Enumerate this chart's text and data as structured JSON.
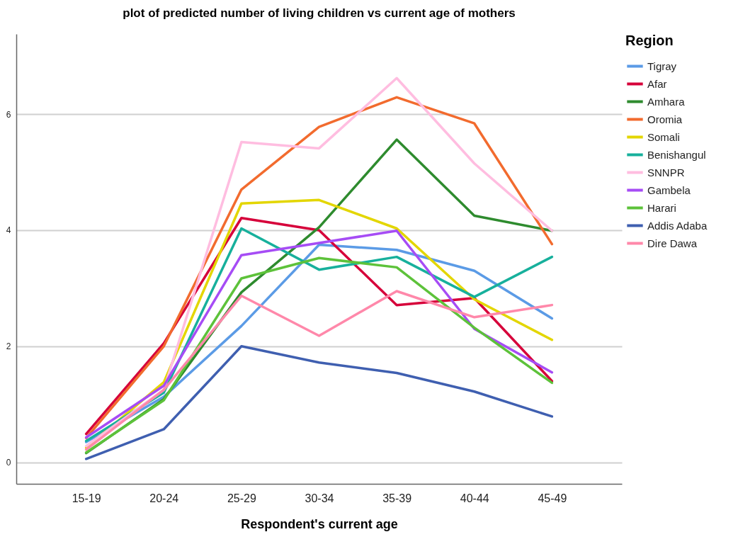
{
  "chart_data": {
    "type": "line",
    "title": "plot of predicted number of living children vs current age of mothers",
    "xlabel": "Respondent's current age",
    "legend_title": "Region",
    "categories": [
      "15-19",
      "20-24",
      "25-29",
      "30-34",
      "35-39",
      "40-44",
      "45-49"
    ],
    "ylim": [
      -0.37,
      7.38
    ],
    "yticks": [
      0,
      2,
      4,
      6
    ],
    "grid": "y",
    "legend": "right",
    "line_style": "solid",
    "series": [
      {
        "name": "Tigray",
        "color": "#5b9be6",
        "values": [
          0.35,
          1.13,
          2.35,
          3.75,
          3.66,
          3.3,
          2.48
        ]
      },
      {
        "name": "Afar",
        "color": "#d6003a",
        "values": [
          0.49,
          2.05,
          4.21,
          4.0,
          2.71,
          2.83,
          1.4
        ]
      },
      {
        "name": "Amhara",
        "color": "#2e8b2e",
        "values": [
          0.16,
          1.09,
          2.93,
          4.05,
          5.56,
          4.25,
          3.99
        ]
      },
      {
        "name": "Oromia",
        "color": "#f26b2e",
        "values": [
          0.42,
          2.0,
          4.7,
          5.78,
          6.29,
          5.84,
          3.76
        ]
      },
      {
        "name": "Somali",
        "color": "#e3d600",
        "values": [
          0.25,
          1.38,
          4.46,
          4.52,
          4.03,
          2.81,
          2.11
        ]
      },
      {
        "name": "Benishangul",
        "color": "#17b09c",
        "values": [
          0.37,
          1.2,
          4.03,
          3.32,
          3.54,
          2.85,
          3.54
        ]
      },
      {
        "name": "SNNPR",
        "color": "#ffbde0",
        "values": [
          0.28,
          1.25,
          5.52,
          5.41,
          6.62,
          5.15,
          3.99
        ]
      },
      {
        "name": "Gambela",
        "color": "#a64cf5",
        "values": [
          0.43,
          1.32,
          3.57,
          3.78,
          3.99,
          2.3,
          1.55
        ]
      },
      {
        "name": "Harari",
        "color": "#5dc23a",
        "values": [
          0.17,
          1.07,
          3.17,
          3.52,
          3.36,
          2.32,
          1.37
        ]
      },
      {
        "name": "Addis Adaba",
        "color": "#3f5fb0",
        "values": [
          0.06,
          0.57,
          2.0,
          1.72,
          1.54,
          1.22,
          0.79
        ]
      },
      {
        "name": "Dire Dawa",
        "color": "#ff88aa",
        "values": [
          0.22,
          1.25,
          2.87,
          2.18,
          2.95,
          2.5,
          2.71
        ]
      }
    ]
  }
}
